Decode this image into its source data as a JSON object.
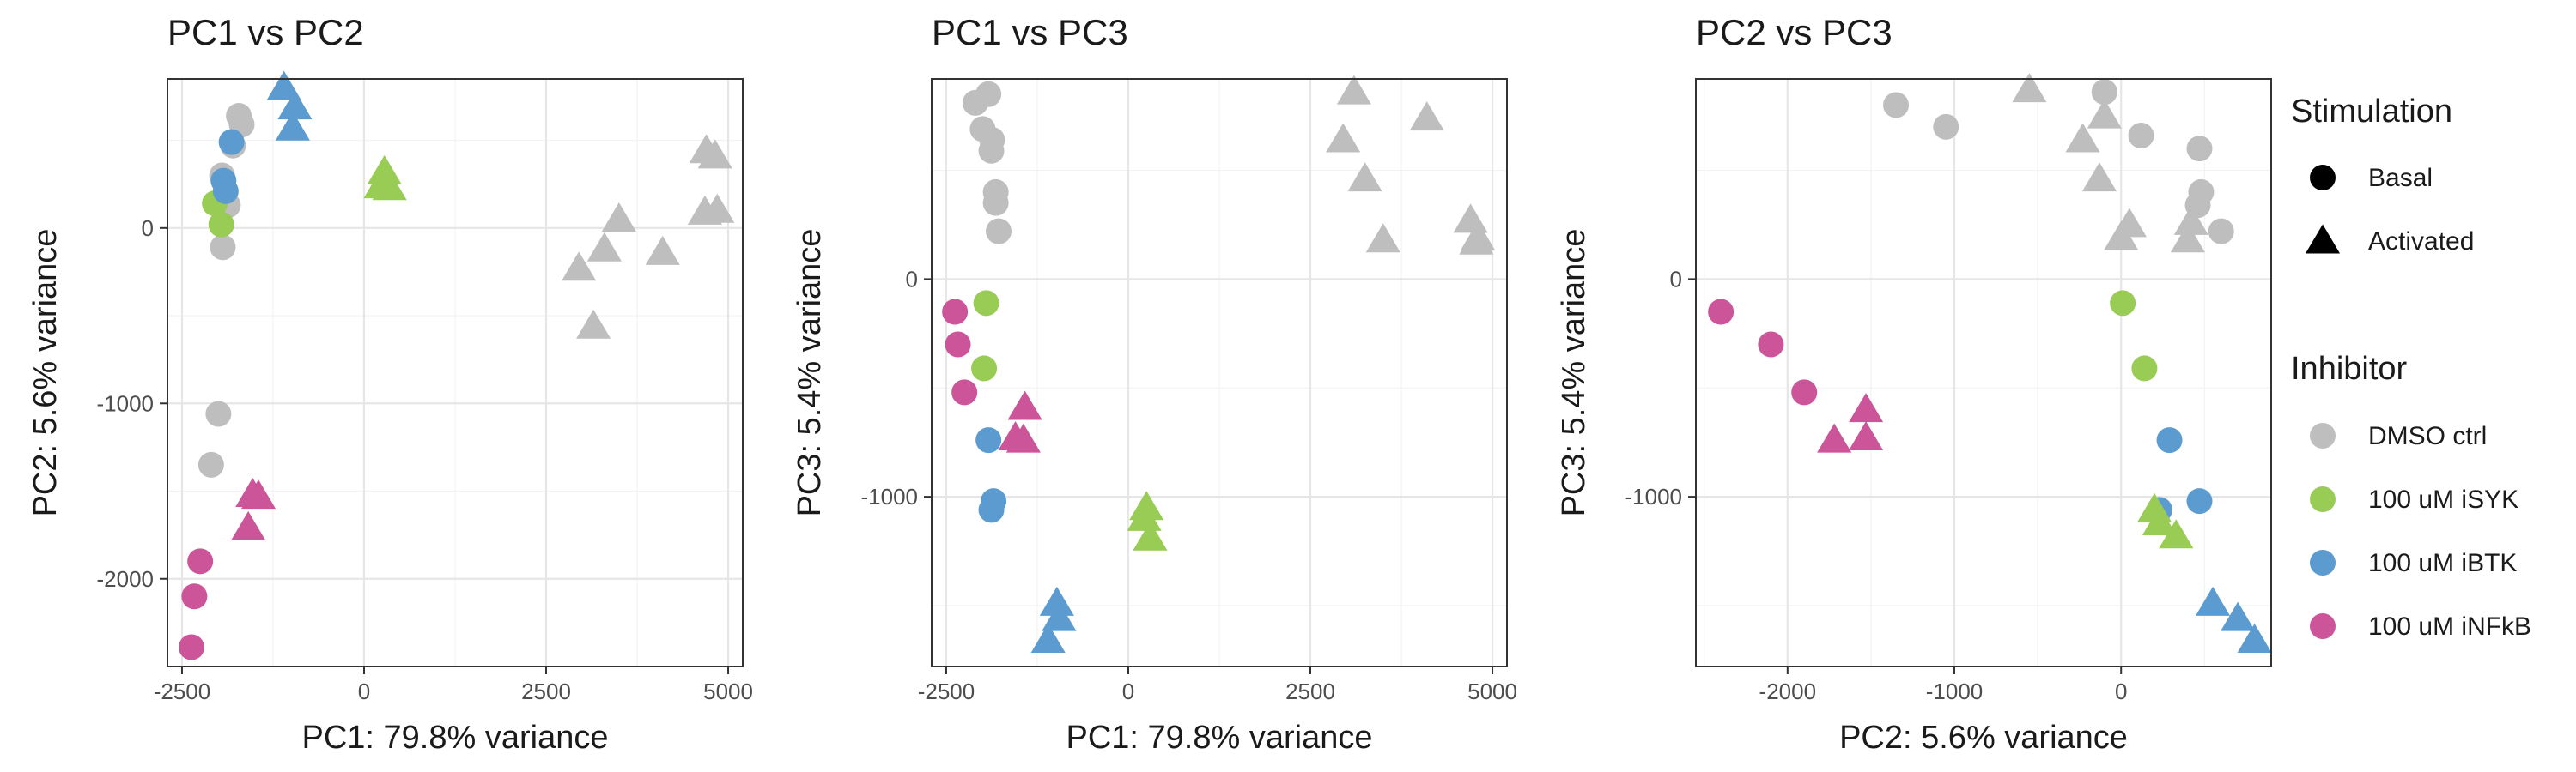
{
  "colors": {
    "DMSO ctrl": "#BEBEBE",
    "100 uM iSYK": "#99CC55",
    "100 uM iBTK": "#5B9BD0",
    "100 uM iNFkB": "#CC5599"
  },
  "legend": {
    "stimulation_title": "Stimulation",
    "stimulation": [
      {
        "label": "Basal",
        "shape": "circle"
      },
      {
        "label": "Activated",
        "shape": "triangle"
      }
    ],
    "inhibitor_title": "Inhibitor",
    "inhibitor": [
      "DMSO ctrl",
      "100 uM iSYK",
      "100 uM iBTK",
      "100 uM iNFkB"
    ]
  },
  "chart_data": [
    {
      "type": "scatter",
      "title": "PC1 vs PC2",
      "xlabel": "PC1: 79.8% variance",
      "ylabel": "PC2: 5.6% variance",
      "xlim": [
        -2700,
        5200
      ],
      "ylim": [
        -2500,
        850
      ],
      "xticks": [
        -2500,
        0,
        2500,
        5000
      ],
      "xtick_labels": [
        "-2500",
        "0",
        "2500",
        "5000"
      ],
      "yticks": [
        -2000,
        -1000,
        0
      ],
      "ytick_labels": [
        "-2000",
        "-1000",
        "0"
      ],
      "points": [
        {
          "x": -1720,
          "y": 640,
          "shape": "circle",
          "group": "DMSO ctrl"
        },
        {
          "x": -1680,
          "y": 590,
          "shape": "circle",
          "group": "DMSO ctrl"
        },
        {
          "x": -1800,
          "y": 470,
          "shape": "circle",
          "group": "DMSO ctrl"
        },
        {
          "x": -1950,
          "y": 300,
          "shape": "circle",
          "group": "DMSO ctrl"
        },
        {
          "x": -1870,
          "y": 130,
          "shape": "circle",
          "group": "DMSO ctrl"
        },
        {
          "x": -1940,
          "y": -110,
          "shape": "circle",
          "group": "DMSO ctrl"
        },
        {
          "x": -2000,
          "y": -1060,
          "shape": "circle",
          "group": "DMSO ctrl"
        },
        {
          "x": -2100,
          "y": -1350,
          "shape": "circle",
          "group": "DMSO ctrl"
        },
        {
          "x": -2050,
          "y": 140,
          "shape": "circle",
          "group": "100 uM iSYK"
        },
        {
          "x": -1960,
          "y": 20,
          "shape": "circle",
          "group": "100 uM iSYK"
        },
        {
          "x": -1820,
          "y": 490,
          "shape": "circle",
          "group": "100 uM iBTK"
        },
        {
          "x": -1930,
          "y": 270,
          "shape": "circle",
          "group": "100 uM iBTK"
        },
        {
          "x": -1900,
          "y": 210,
          "shape": "circle",
          "group": "100 uM iBTK"
        },
        {
          "x": -2250,
          "y": -1900,
          "shape": "circle",
          "group": "100 uM iNFkB"
        },
        {
          "x": -2330,
          "y": -2100,
          "shape": "circle",
          "group": "100 uM iNFkB"
        },
        {
          "x": -2370,
          "y": -2390,
          "shape": "circle",
          "group": "100 uM iNFkB"
        },
        {
          "x": 4700,
          "y": 440,
          "shape": "triangle",
          "group": "DMSO ctrl"
        },
        {
          "x": 4820,
          "y": 410,
          "shape": "triangle",
          "group": "DMSO ctrl"
        },
        {
          "x": 4680,
          "y": 90,
          "shape": "triangle",
          "group": "DMSO ctrl"
        },
        {
          "x": 4850,
          "y": 100,
          "shape": "triangle",
          "group": "DMSO ctrl"
        },
        {
          "x": 3500,
          "y": 50,
          "shape": "triangle",
          "group": "DMSO ctrl"
        },
        {
          "x": 3300,
          "y": -120,
          "shape": "triangle",
          "group": "DMSO ctrl"
        },
        {
          "x": 2950,
          "y": -230,
          "shape": "triangle",
          "group": "DMSO ctrl"
        },
        {
          "x": 4100,
          "y": -140,
          "shape": "triangle",
          "group": "DMSO ctrl"
        },
        {
          "x": 3150,
          "y": -560,
          "shape": "triangle",
          "group": "DMSO ctrl"
        },
        {
          "x": 280,
          "y": 320,
          "shape": "triangle",
          "group": "100 uM iSYK"
        },
        {
          "x": 230,
          "y": 240,
          "shape": "triangle",
          "group": "100 uM iSYK"
        },
        {
          "x": 350,
          "y": 230,
          "shape": "triangle",
          "group": "100 uM iSYK"
        },
        {
          "x": -1100,
          "y": 800,
          "shape": "triangle",
          "group": "100 uM iBTK"
        },
        {
          "x": -950,
          "y": 690,
          "shape": "triangle",
          "group": "100 uM iBTK"
        },
        {
          "x": -980,
          "y": 570,
          "shape": "triangle",
          "group": "100 uM iBTK"
        },
        {
          "x": -1450,
          "y": -1530,
          "shape": "triangle",
          "group": "100 uM iNFkB"
        },
        {
          "x": -1530,
          "y": -1520,
          "shape": "triangle",
          "group": "100 uM iNFkB"
        },
        {
          "x": -1590,
          "y": -1710,
          "shape": "triangle",
          "group": "100 uM iNFkB"
        }
      ]
    },
    {
      "type": "scatter",
      "title": "PC1 vs PC3",
      "xlabel": "PC1: 79.8% variance",
      "ylabel": "PC3: 5.4% variance",
      "xlim": [
        -2700,
        5200
      ],
      "ylim": [
        -1780,
        920
      ],
      "xticks": [
        -2500,
        0,
        2500,
        5000
      ],
      "xtick_labels": [
        "-2500",
        "0",
        "2500",
        "5000"
      ],
      "yticks": [
        -1000,
        0
      ],
      "ytick_labels": [
        "-1000",
        "0"
      ],
      "points": [
        {
          "x": -1920,
          "y": 850,
          "shape": "circle",
          "group": "DMSO ctrl"
        },
        {
          "x": -2100,
          "y": 810,
          "shape": "circle",
          "group": "DMSO ctrl"
        },
        {
          "x": -2000,
          "y": 690,
          "shape": "circle",
          "group": "DMSO ctrl"
        },
        {
          "x": -1870,
          "y": 640,
          "shape": "circle",
          "group": "DMSO ctrl"
        },
        {
          "x": -1880,
          "y": 590,
          "shape": "circle",
          "group": "DMSO ctrl"
        },
        {
          "x": -1820,
          "y": 400,
          "shape": "circle",
          "group": "DMSO ctrl"
        },
        {
          "x": -1820,
          "y": 350,
          "shape": "circle",
          "group": "DMSO ctrl"
        },
        {
          "x": -1780,
          "y": 220,
          "shape": "circle",
          "group": "DMSO ctrl"
        },
        {
          "x": -1950,
          "y": -110,
          "shape": "circle",
          "group": "100 uM iSYK"
        },
        {
          "x": -1980,
          "y": -410,
          "shape": "circle",
          "group": "100 uM iSYK"
        },
        {
          "x": -1920,
          "y": -740,
          "shape": "circle",
          "group": "100 uM iBTK"
        },
        {
          "x": -1850,
          "y": -1020,
          "shape": "circle",
          "group": "100 uM iBTK"
        },
        {
          "x": -1880,
          "y": -1060,
          "shape": "circle",
          "group": "100 uM iBTK"
        },
        {
          "x": -2380,
          "y": -150,
          "shape": "circle",
          "group": "100 uM iNFkB"
        },
        {
          "x": -2340,
          "y": -300,
          "shape": "circle",
          "group": "100 uM iNFkB"
        },
        {
          "x": -2250,
          "y": -520,
          "shape": "circle",
          "group": "100 uM iNFkB"
        },
        {
          "x": 3100,
          "y": 860,
          "shape": "triangle",
          "group": "DMSO ctrl"
        },
        {
          "x": 4100,
          "y": 740,
          "shape": "triangle",
          "group": "DMSO ctrl"
        },
        {
          "x": 2950,
          "y": 640,
          "shape": "triangle",
          "group": "DMSO ctrl"
        },
        {
          "x": 3250,
          "y": 460,
          "shape": "triangle",
          "group": "DMSO ctrl"
        },
        {
          "x": 4700,
          "y": 270,
          "shape": "triangle",
          "group": "DMSO ctrl"
        },
        {
          "x": 4800,
          "y": 190,
          "shape": "triangle",
          "group": "DMSO ctrl"
        },
        {
          "x": 3500,
          "y": 180,
          "shape": "triangle",
          "group": "DMSO ctrl"
        },
        {
          "x": 4780,
          "y": 170,
          "shape": "triangle",
          "group": "DMSO ctrl"
        },
        {
          "x": 250,
          "y": -1050,
          "shape": "triangle",
          "group": "100 uM iSYK"
        },
        {
          "x": 220,
          "y": -1100,
          "shape": "triangle",
          "group": "100 uM iSYK"
        },
        {
          "x": 300,
          "y": -1190,
          "shape": "triangle",
          "group": "100 uM iSYK"
        },
        {
          "x": -980,
          "y": -1490,
          "shape": "triangle",
          "group": "100 uM iBTK"
        },
        {
          "x": -950,
          "y": -1560,
          "shape": "triangle",
          "group": "100 uM iBTK"
        },
        {
          "x": -1100,
          "y": -1660,
          "shape": "triangle",
          "group": "100 uM iBTK"
        },
        {
          "x": -1420,
          "y": -590,
          "shape": "triangle",
          "group": "100 uM iNFkB"
        },
        {
          "x": -1550,
          "y": -730,
          "shape": "triangle",
          "group": "100 uM iNFkB"
        },
        {
          "x": -1440,
          "y": -740,
          "shape": "triangle",
          "group": "100 uM iNFkB"
        }
      ]
    },
    {
      "type": "scatter",
      "title": "PC2 vs PC3",
      "xlabel": "PC2: 5.6% variance",
      "ylabel": "PC3: 5.4% variance",
      "xlim": [
        -2550,
        900
      ],
      "ylim": [
        -1780,
        920
      ],
      "xticks": [
        -2000,
        -1000,
        0
      ],
      "xtick_labels": [
        "-2000",
        "-1000",
        "0"
      ],
      "yticks": [
        -1000,
        0
      ],
      "ytick_labels": [
        "-1000",
        "0"
      ],
      "points": [
        {
          "x": -1350,
          "y": 800,
          "shape": "circle",
          "group": "DMSO ctrl"
        },
        {
          "x": -1050,
          "y": 700,
          "shape": "circle",
          "group": "DMSO ctrl"
        },
        {
          "x": -100,
          "y": 860,
          "shape": "circle",
          "group": "DMSO ctrl"
        },
        {
          "x": 120,
          "y": 660,
          "shape": "circle",
          "group": "DMSO ctrl"
        },
        {
          "x": 470,
          "y": 600,
          "shape": "circle",
          "group": "DMSO ctrl"
        },
        {
          "x": 480,
          "y": 400,
          "shape": "circle",
          "group": "DMSO ctrl"
        },
        {
          "x": 460,
          "y": 340,
          "shape": "circle",
          "group": "DMSO ctrl"
        },
        {
          "x": 600,
          "y": 220,
          "shape": "circle",
          "group": "DMSO ctrl"
        },
        {
          "x": 10,
          "y": -110,
          "shape": "circle",
          "group": "100 uM iSYK"
        },
        {
          "x": 140,
          "y": -410,
          "shape": "circle",
          "group": "100 uM iSYK"
        },
        {
          "x": 290,
          "y": -740,
          "shape": "circle",
          "group": "100 uM iBTK"
        },
        {
          "x": 470,
          "y": -1020,
          "shape": "circle",
          "group": "100 uM iBTK"
        },
        {
          "x": 230,
          "y": -1060,
          "shape": "circle",
          "group": "100 uM iBTK"
        },
        {
          "x": -2400,
          "y": -150,
          "shape": "circle",
          "group": "100 uM iNFkB"
        },
        {
          "x": -2100,
          "y": -300,
          "shape": "circle",
          "group": "100 uM iNFkB"
        },
        {
          "x": -1900,
          "y": -520,
          "shape": "circle",
          "group": "100 uM iNFkB"
        },
        {
          "x": -550,
          "y": 870,
          "shape": "triangle",
          "group": "DMSO ctrl"
        },
        {
          "x": -100,
          "y": 750,
          "shape": "triangle",
          "group": "DMSO ctrl"
        },
        {
          "x": -230,
          "y": 640,
          "shape": "triangle",
          "group": "DMSO ctrl"
        },
        {
          "x": -130,
          "y": 460,
          "shape": "triangle",
          "group": "DMSO ctrl"
        },
        {
          "x": 50,
          "y": 250,
          "shape": "triangle",
          "group": "DMSO ctrl"
        },
        {
          "x": 0,
          "y": 190,
          "shape": "triangle",
          "group": "DMSO ctrl"
        },
        {
          "x": 420,
          "y": 260,
          "shape": "triangle",
          "group": "DMSO ctrl"
        },
        {
          "x": 400,
          "y": 180,
          "shape": "triangle",
          "group": "DMSO ctrl"
        },
        {
          "x": 200,
          "y": -1060,
          "shape": "triangle",
          "group": "100 uM iSYK"
        },
        {
          "x": 230,
          "y": -1120,
          "shape": "triangle",
          "group": "100 uM iSYK"
        },
        {
          "x": 330,
          "y": -1180,
          "shape": "triangle",
          "group": "100 uM iSYK"
        },
        {
          "x": 550,
          "y": -1490,
          "shape": "triangle",
          "group": "100 uM iBTK"
        },
        {
          "x": 700,
          "y": -1560,
          "shape": "triangle",
          "group": "100 uM iBTK"
        },
        {
          "x": 800,
          "y": -1660,
          "shape": "triangle",
          "group": "100 uM iBTK"
        },
        {
          "x": -1530,
          "y": -600,
          "shape": "triangle",
          "group": "100 uM iNFkB"
        },
        {
          "x": -1720,
          "y": -740,
          "shape": "triangle",
          "group": "100 uM iNFkB"
        },
        {
          "x": -1530,
          "y": -730,
          "shape": "triangle",
          "group": "100 uM iNFkB"
        }
      ]
    }
  ]
}
